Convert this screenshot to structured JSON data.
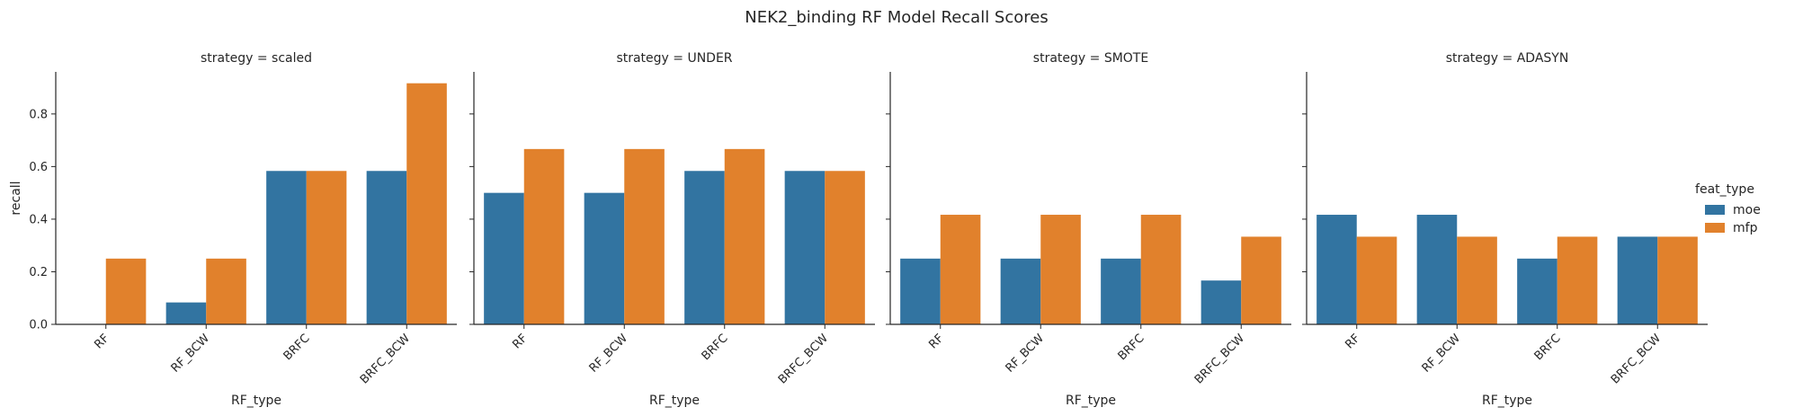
{
  "chart_data": {
    "type": "bar",
    "title": "NEK2_binding RF Model Recall Scores",
    "ylabel": "recall",
    "xlabel": "RF_type",
    "categories": [
      "RF",
      "RF_BCW",
      "BRFC",
      "BRFC_BCW"
    ],
    "yticks": [
      "0.0",
      "0.2",
      "0.4",
      "0.6",
      "0.8"
    ],
    "ylim": [
      0,
      0.96
    ],
    "legend": {
      "title": "feat_type",
      "placement": "right",
      "entries": [
        "moe",
        "mfp"
      ]
    },
    "colors": {
      "moe": "#3274a1",
      "mfp": "#e1812c"
    },
    "facets": [
      {
        "title": "strategy = scaled",
        "series": [
          {
            "name": "moe",
            "values": [
              0.0,
              0.0833,
              0.5833,
              0.5833
            ]
          },
          {
            "name": "mfp",
            "values": [
              0.25,
              0.25,
              0.5833,
              0.9167
            ]
          }
        ]
      },
      {
        "title": "strategy = UNDER",
        "series": [
          {
            "name": "moe",
            "values": [
              0.5,
              0.5,
              0.5833,
              0.5833
            ]
          },
          {
            "name": "mfp",
            "values": [
              0.6667,
              0.6667,
              0.6667,
              0.5833
            ]
          }
        ]
      },
      {
        "title": "strategy = SMOTE",
        "series": [
          {
            "name": "moe",
            "values": [
              0.25,
              0.25,
              0.25,
              0.1667
            ]
          },
          {
            "name": "mfp",
            "values": [
              0.4167,
              0.4167,
              0.4167,
              0.3333
            ]
          }
        ]
      },
      {
        "title": "strategy = ADASYN",
        "series": [
          {
            "name": "moe",
            "values": [
              0.4167,
              0.4167,
              0.25,
              0.3333
            ]
          },
          {
            "name": "mfp",
            "values": [
              0.3333,
              0.3333,
              0.3333,
              0.3333
            ]
          }
        ]
      }
    ]
  }
}
